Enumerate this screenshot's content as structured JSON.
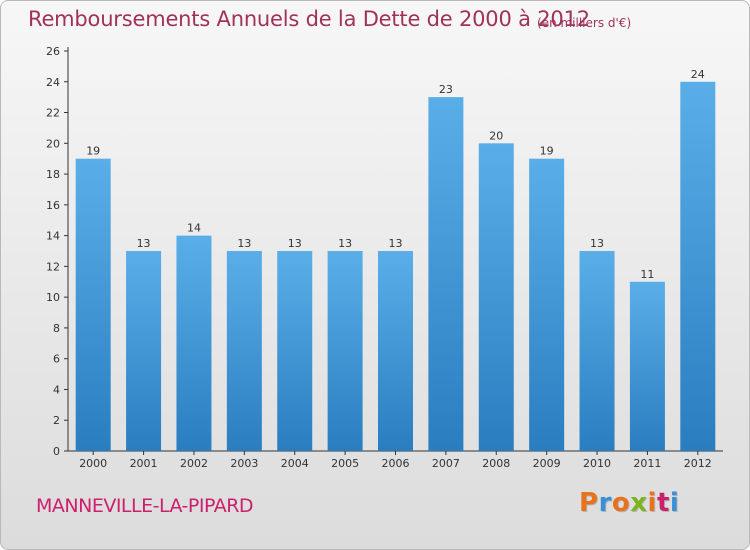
{
  "chart_data": {
    "type": "bar",
    "title": "Remboursements Annuels de la Dette de 2000 à 2012",
    "subtitle": "(en milliers d'€)",
    "categories": [
      "2000",
      "2001",
      "2002",
      "2003",
      "2004",
      "2005",
      "2006",
      "2007",
      "2008",
      "2009",
      "2010",
      "2011",
      "2012"
    ],
    "values": [
      19,
      13,
      14,
      13,
      13,
      13,
      13,
      23,
      20,
      19,
      13,
      11,
      24
    ],
    "ylim": [
      0,
      26
    ],
    "yticks": [
      0,
      2,
      4,
      6,
      8,
      10,
      12,
      14,
      16,
      18,
      20,
      22,
      24,
      26
    ],
    "grid": false,
    "bar_color_top": "#5aaee8",
    "bar_color_bottom": "#2a7ec0",
    "data_labels": true
  },
  "footer": {
    "place": "MANNEVILLE-LA-PIPARD",
    "logo": "Proxiti",
    "logo_colors": [
      "#e8731e",
      "#3b8fd6",
      "#e8731e",
      "#7ab51d",
      "#e8731e",
      "#cc1f6c",
      "#3b8fd6"
    ]
  },
  "colors": {
    "title": "#a0325a",
    "place": "#cc1f6c",
    "axis": "#333333"
  }
}
